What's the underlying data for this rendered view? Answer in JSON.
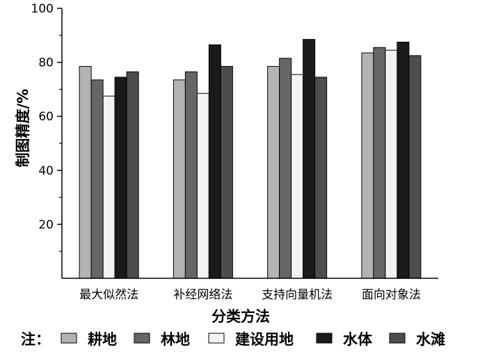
{
  "chart_data": {
    "type": "bar",
    "title": "",
    "xlabel": "分类方法",
    "ylabel": "制图精度/%",
    "ylim": [
      0,
      100
    ],
    "yticks": [
      20,
      40,
      60,
      80,
      100
    ],
    "categories": [
      "最大似然法",
      "补经网络法",
      "支持向量机法",
      "面向对象法"
    ],
    "series": [
      {
        "name": "耕地",
        "color": "#b3b3b3",
        "values": [
          78.5,
          73.5,
          78.5,
          83.5
        ]
      },
      {
        "name": "林地",
        "color": "#666666",
        "values": [
          73.5,
          76.5,
          81.5,
          85.5
        ]
      },
      {
        "name": "建设用地",
        "color": "#f2f2f2",
        "values": [
          67.5,
          68.5,
          75.5,
          84.5
        ]
      },
      {
        "name": "水体",
        "color": "#1a1a1a",
        "values": [
          74.5,
          86.5,
          88.5,
          87.5
        ]
      },
      {
        "name": "水滩",
        "color": "#4d4d4d",
        "values": [
          76.5,
          78.5,
          74.5,
          82.5
        ]
      }
    ],
    "legend": {
      "prefix": "注：",
      "position": "bottom"
    },
    "grid": false
  }
}
